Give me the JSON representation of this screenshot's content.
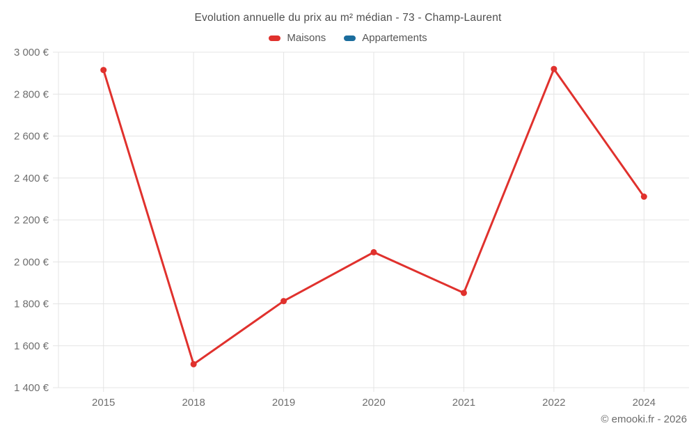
{
  "chart_data": {
    "type": "line",
    "title": "Evolution annuelle du prix au m² médian - 73 - Champ-Laurent",
    "categories": [
      "2015",
      "2018",
      "2019",
      "2020",
      "2021",
      "2022",
      "2024"
    ],
    "series": [
      {
        "name": "Maisons",
        "color": "#e0312d",
        "values": [
          2915,
          1512,
          1813,
          2046,
          1852,
          2920,
          2311
        ]
      },
      {
        "name": "Appartements",
        "color": "#1b6d9d",
        "values": []
      }
    ],
    "yticks": [
      1400,
      1600,
      1800,
      2000,
      2200,
      2400,
      2600,
      2800,
      3000
    ],
    "ylim": [
      1400,
      3000
    ],
    "y_tick_format": "{value} €",
    "grid": true,
    "legend_position": "top",
    "colors": {
      "grid": "#e4e4e4",
      "axis_text": "#6e6e6e"
    }
  },
  "footer": {
    "copyright": "© emooki.fr - 2026"
  }
}
